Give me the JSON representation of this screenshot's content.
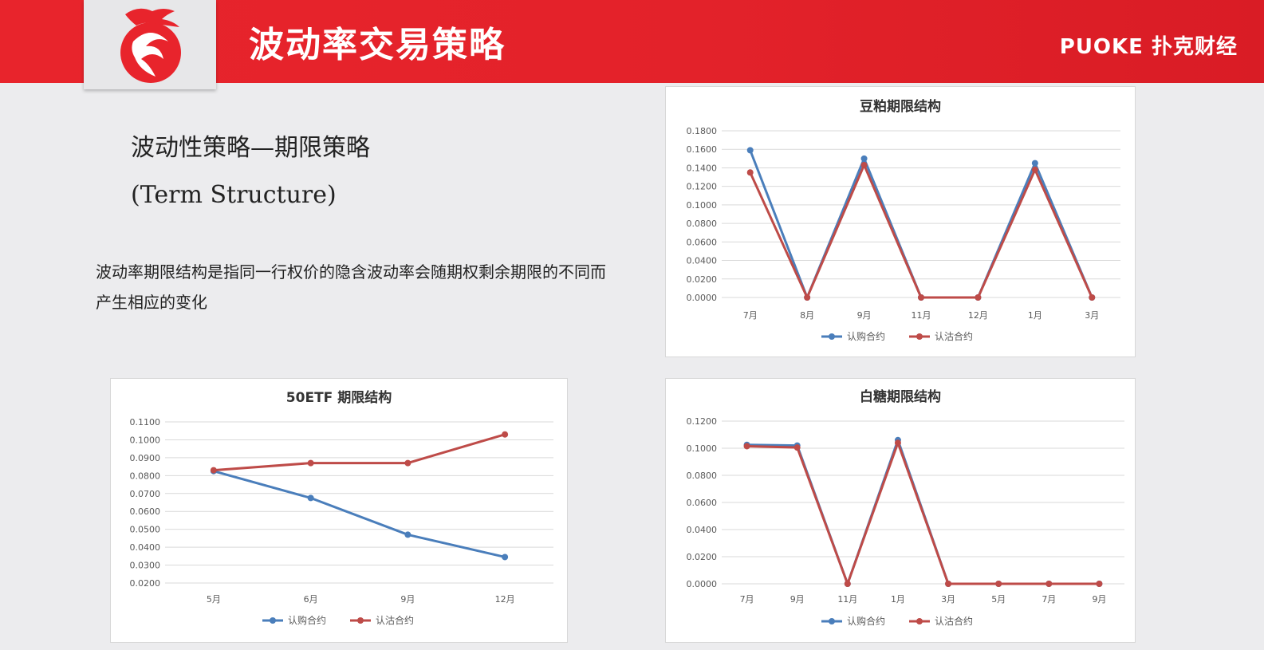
{
  "header": {
    "title": "波动率交易策略",
    "brand": "PUOKE 扑克财经",
    "colors": {
      "bar": "#e3222a",
      "logo_red": "#e8242c"
    },
    "logo_icon": "dragon-logo-icon"
  },
  "content": {
    "section_title": "波动性策略—期限策略",
    "section_subtitle": "(Term Structure)",
    "description": "波动率期限结构是指同一行权价的隐含波动率会随期权剩余期限的不同而产生相应的变化"
  },
  "chart_data": [
    {
      "id": "soymeal",
      "type": "line",
      "title": "豆粕期限结构",
      "categories": [
        "7月",
        "8月",
        "9月",
        "11月",
        "12月",
        "1月",
        "3月"
      ],
      "series": [
        {
          "name": "认购合约",
          "color": "#4a7ebb",
          "values": [
            0.159,
            0.0,
            0.15,
            0.0,
            0.0,
            0.145,
            0.0
          ]
        },
        {
          "name": "认沽合约",
          "color": "#be4b48",
          "values": [
            0.135,
            0.0,
            0.143,
            0.0,
            0.0,
            0.138,
            0.0
          ]
        }
      ],
      "ylim": [
        0,
        0.18
      ],
      "yticks": [
        "0.0000",
        "0.0200",
        "0.0400",
        "0.0600",
        "0.0800",
        "0.1000",
        "0.1200",
        "0.1400",
        "0.1600",
        "0.1800"
      ],
      "grid": true,
      "legend": "bottom"
    },
    {
      "id": "50etf",
      "type": "line",
      "title": "50ETF 期限结构",
      "categories": [
        "5月",
        "6月",
        "9月",
        "12月"
      ],
      "series": [
        {
          "name": "认购合约",
          "color": "#4a7ebb",
          "values": [
            0.0825,
            0.0675,
            0.047,
            0.0345
          ]
        },
        {
          "name": "认沽合约",
          "color": "#be4b48",
          "values": [
            0.083,
            0.087,
            0.087,
            0.103
          ]
        }
      ],
      "ylim": [
        0.02,
        0.11
      ],
      "yticks": [
        "0.0200",
        "0.0300",
        "0.0400",
        "0.0500",
        "0.0600",
        "0.0700",
        "0.0800",
        "0.0900",
        "0.1000",
        "0.1100"
      ],
      "grid": true,
      "legend": "bottom"
    },
    {
      "id": "sugar",
      "type": "line",
      "title": "白糖期限结构",
      "categories": [
        "7月",
        "9月",
        "11月",
        "1月",
        "3月",
        "5月",
        "7月",
        "9月"
      ],
      "series": [
        {
          "name": "认购合约",
          "color": "#4a7ebb",
          "values": [
            0.1025,
            0.102,
            0.0,
            0.106,
            0.0,
            0.0,
            0.0,
            0.0
          ]
        },
        {
          "name": "认沽合约",
          "color": "#be4b48",
          "values": [
            0.1015,
            0.1005,
            0.0,
            0.104,
            0.0,
            0.0,
            0.0,
            0.0
          ]
        }
      ],
      "ylim": [
        0,
        0.12
      ],
      "yticks": [
        "0.0000",
        "0.0200",
        "0.0400",
        "0.0600",
        "0.0800",
        "0.1000",
        "0.1200"
      ],
      "grid": true,
      "legend": "bottom"
    }
  ]
}
